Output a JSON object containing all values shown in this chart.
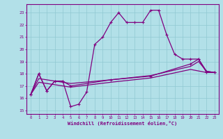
{
  "xlabel": "Windchill (Refroidissement éolien,°C)",
  "background_color": "#b2e0e8",
  "grid_color": "#90c8d2",
  "line_color": "#800080",
  "spine_color": "#800080",
  "xlim": [
    -0.5,
    23.5
  ],
  "ylim": [
    14.7,
    23.7
  ],
  "yticks": [
    15,
    16,
    17,
    18,
    19,
    20,
    21,
    22,
    23
  ],
  "xticks": [
    0,
    1,
    2,
    3,
    4,
    5,
    6,
    7,
    8,
    9,
    10,
    11,
    12,
    13,
    14,
    15,
    16,
    17,
    18,
    19,
    20,
    21,
    22,
    23
  ],
  "series": [
    {
      "x": [
        0,
        1,
        2,
        3,
        4,
        5,
        6,
        7,
        8,
        9,
        10,
        11,
        12,
        13,
        14,
        15,
        16,
        17,
        18,
        19,
        20,
        21,
        22,
        23
      ],
      "y": [
        16.3,
        18.0,
        16.6,
        17.4,
        17.4,
        15.3,
        15.5,
        16.5,
        20.4,
        21.0,
        22.2,
        23.0,
        22.2,
        22.2,
        22.2,
        23.2,
        23.2,
        21.2,
        19.6,
        19.2,
        19.2,
        19.2,
        18.1,
        18.1
      ],
      "color": "#800080",
      "lw": 0.9,
      "marker": "+"
    },
    {
      "x": [
        0,
        1,
        2,
        3,
        4,
        5,
        10,
        15,
        20,
        21,
        22,
        23
      ],
      "y": [
        16.3,
        18.0,
        16.6,
        17.4,
        17.4,
        17.0,
        17.5,
        17.8,
        18.8,
        19.2,
        18.2,
        18.1
      ],
      "color": "#800080",
      "lw": 0.9,
      "marker": "+"
    },
    {
      "x": [
        0,
        1,
        5,
        10,
        15,
        20,
        21,
        22,
        23
      ],
      "y": [
        16.3,
        17.6,
        17.2,
        17.5,
        17.85,
        18.6,
        19.0,
        18.2,
        18.1
      ],
      "color": "#800080",
      "lw": 0.9,
      "marker": null
    },
    {
      "x": [
        0,
        1,
        5,
        10,
        15,
        20,
        22,
        23
      ],
      "y": [
        16.3,
        17.3,
        16.9,
        17.3,
        17.65,
        18.35,
        18.1,
        18.1
      ],
      "color": "#800080",
      "lw": 0.9,
      "marker": null
    }
  ]
}
